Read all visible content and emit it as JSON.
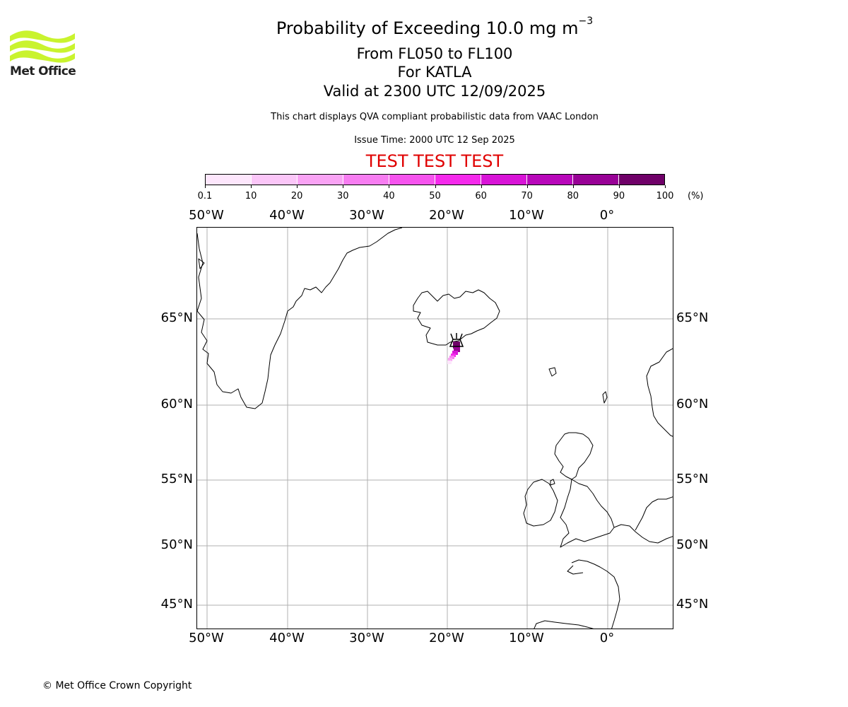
{
  "logo": {
    "text": "Met Office",
    "color": "#c9f32e"
  },
  "header": {
    "title_main": "Probability of Exceeding 10.0 mg m",
    "title_exponent": "−3",
    "level_range": "From FL050 to FL100",
    "volcano": "For KATLA",
    "valid": "Valid at 2300 UTC 12/09/2025",
    "description": "This chart displays QVA compliant probabilistic data from VAAC London",
    "issue_time": "Issue Time: 2000 UTC 12 Sep 2025",
    "test_banner": "TEST TEST TEST",
    "test_color": "#e00000"
  },
  "colorbar": {
    "tick_labels": [
      "0.1",
      "10",
      "20",
      "30",
      "40",
      "50",
      "60",
      "70",
      "80",
      "90",
      "100"
    ],
    "unit": "(%)",
    "colors": [
      "#fde6fc",
      "#fbc6f8",
      "#f9a3f4",
      "#f77df1",
      "#f654ee",
      "#f52aec",
      "#d814d7",
      "#b808ba",
      "#980296",
      "#6f0068"
    ]
  },
  "map": {
    "lon_labels": [
      "50°W",
      "40°W",
      "30°W",
      "20°W",
      "10°W",
      "0°"
    ],
    "lat_labels": [
      "65°N",
      "60°N",
      "55°N",
      "50°N",
      "45°N"
    ],
    "volcano_icon": "volcano-icon",
    "plume_probabilities": [
      {
        "lon": -18.9,
        "lat": 63.5,
        "prob": 95
      },
      {
        "lon": -18.8,
        "lat": 63.3,
        "prob": 85
      },
      {
        "lon": -19.0,
        "lat": 63.1,
        "prob": 70
      },
      {
        "lon": -19.2,
        "lat": 62.9,
        "prob": 55
      },
      {
        "lon": -19.4,
        "lat": 62.7,
        "prob": 40
      },
      {
        "lon": -19.6,
        "lat": 62.5,
        "prob": 25
      },
      {
        "lon": -19.8,
        "lat": 62.3,
        "prob": 10
      }
    ]
  },
  "footer": {
    "copyright": "© Met Office Crown Copyright"
  }
}
